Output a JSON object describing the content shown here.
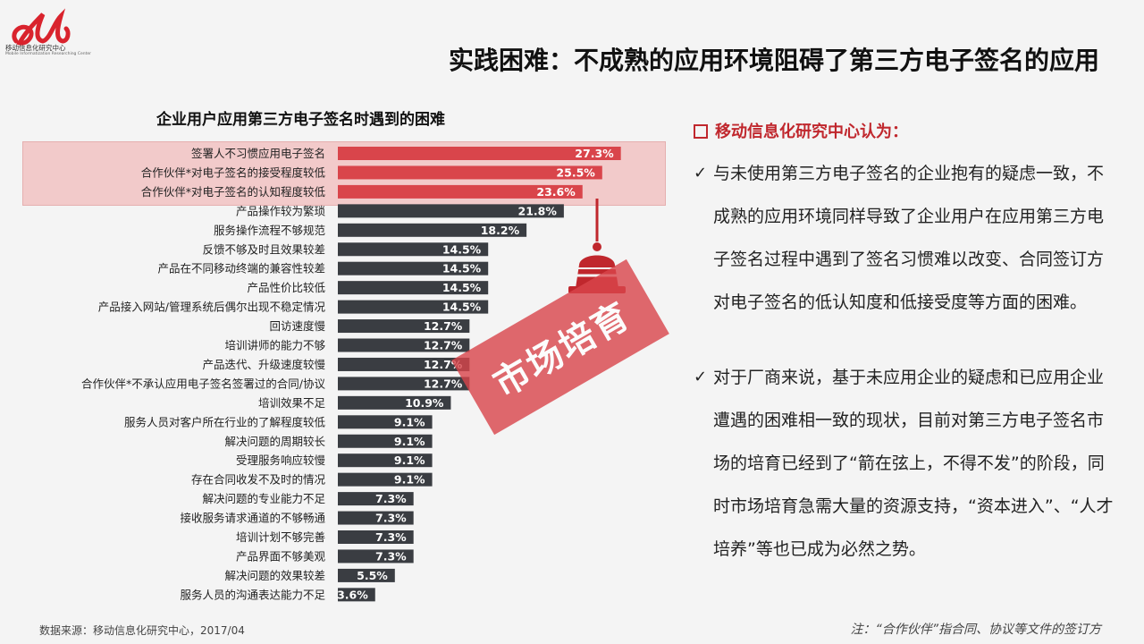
{
  "logo": {
    "org_name": "移动信息化研究中心",
    "org_name_en": "Mobile Informatization Researching Center"
  },
  "page_title": "实践困难：不成熟的应用环境阻碍了第三方电子签名的应用",
  "colors": {
    "highlight_bar": "#d9454b",
    "normal_bar": "#3a3d42",
    "accent_red": "#c0272d",
    "highlight_band": "#f2c3c3"
  },
  "chart_data": {
    "type": "bar",
    "orientation": "horizontal",
    "title": "企业用户应用第三方电子签名时遇到的困难",
    "categories": [
      "签署人不习惯应用电子签名",
      "合作伙伴*对电子签名的接受程度较低",
      "合作伙伴*对电子签名的认知程度较低",
      "产品操作较为繁琐",
      "服务操作流程不够规范",
      "反馈不够及时且效果较差",
      "产品在不同移动终端的兼容性较差",
      "产品性价比较低",
      "产品接入网站/管理系统后偶尔出现不稳定情况",
      "回访速度慢",
      "培训讲师的能力不够",
      "产品迭代、升级速度较慢",
      "合作伙伴*不承认应用电子签名签署过的合同/协议",
      "培训效果不足",
      "服务人员对客户所在行业的了解程度较低",
      "解决问题的周期较长",
      "受理服务响应较慢",
      "存在合同收发不及时的情况",
      "解决问题的专业能力不足",
      "接收服务请求通道的不够畅通",
      "培训计划不够完善",
      "产品界面不够美观",
      "解决问题的效果较差",
      "服务人员的沟通表达能力不足"
    ],
    "values": [
      27.3,
      25.5,
      23.6,
      21.8,
      18.2,
      14.5,
      14.5,
      14.5,
      14.5,
      12.7,
      12.7,
      12.7,
      12.7,
      10.9,
      9.1,
      9.1,
      9.1,
      9.1,
      7.3,
      7.3,
      7.3,
      7.3,
      5.5,
      3.6
    ],
    "value_labels": [
      "27.3%",
      "25.5%",
      "23.6%",
      "21.8%",
      "18.2%",
      "14.5%",
      "14.5%",
      "14.5%",
      "14.5%",
      "12.7%",
      "12.7%",
      "12.7%",
      "12.7%",
      "10.9%",
      "9.1%",
      "9.1%",
      "9.1%",
      "9.1%",
      "7.3%",
      "7.3%",
      "7.3%",
      "7.3%",
      "5.5%",
      "3.6%"
    ],
    "highlighted_count": 3,
    "unit": "%",
    "xlabel": "",
    "ylabel": "",
    "grid": false,
    "legend": "none"
  },
  "stamp_text": "市场培育",
  "side": {
    "heading": "移动信息化研究中心认为：",
    "points": [
      "与未使用第三方电子签名的企业抱有的疑虑一致，不成熟的应用环境同样导致了企业用户在应用第三方电子签名过程中遇到了签名习惯难以改变、合同签订方对电子签名的低认知度和低接受度等方面的困难。",
      "对于厂商来说，基于未应用企业的疑虑和已应用企业遭遇的困难相一致的现状，目前对第三方电子签名市场的培育已经到了“箭在弦上，不得不发”的阶段，同时市场培育急需大量的资源支持，“资本进入”、“人才培养”等也已成为必然之势。"
    ]
  },
  "source_note": "数据来源：移动信息化研究中心，2017/04",
  "footnote": "注：“合作伙伴”指合同、协议等文件的签订方"
}
